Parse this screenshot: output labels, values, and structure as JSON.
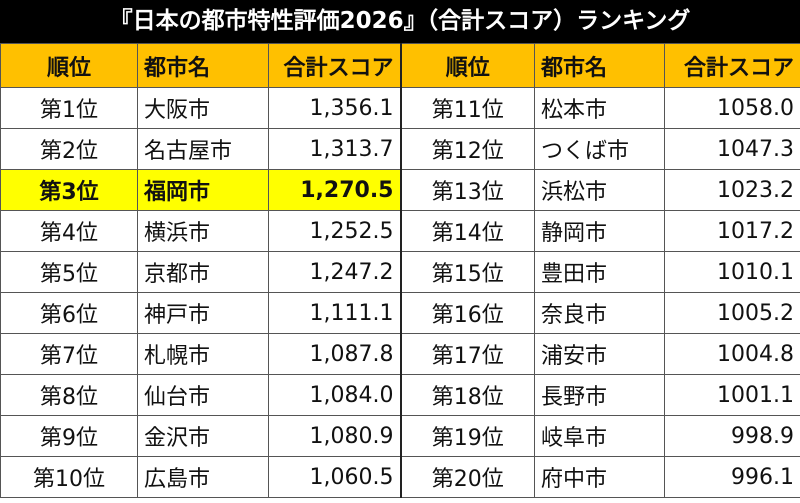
{
  "title": "『日本の都市特性評価2026』（合計スコア）ランキング",
  "table": {
    "header": [
      "順位",
      "都市名",
      "合計スコア",
      "順位",
      "都市名",
      "合計スコア"
    ],
    "rows": [
      [
        "第1位",
        "大阪市",
        "1,356.1",
        "第11位",
        "松本市",
        "1058.0"
      ],
      [
        "第2位",
        "名古屋市",
        "1,313.7",
        "第12位",
        "つくば市",
        "1047.3"
      ],
      [
        "第3位",
        "福岡市",
        "1,270.5",
        "第13位",
        "浜松市",
        "1023.2"
      ],
      [
        "第4位",
        "横浜市",
        "1,252.5",
        "第14位",
        "静岡市",
        "1017.2"
      ],
      [
        "第5位",
        "京都市",
        "1,247.2",
        "第15位",
        "豊田市",
        "1010.1"
      ],
      [
        "第6位",
        "神戸市",
        "1,111.1",
        "第16位",
        "奈良市",
        "1005.2"
      ],
      [
        "第7位",
        "札幌市",
        "1,087.8",
        "第17位",
        "浦安市",
        "1004.8"
      ],
      [
        "第8位",
        "仙台市",
        "1,084.0",
        "第18位",
        "長野市",
        "1001.1"
      ],
      [
        "第9位",
        "金沢市",
        "1,080.9",
        "第19位",
        "岐阜市",
        "998.9"
      ],
      [
        "第10位",
        "広島市",
        "1,060.5",
        "第20位",
        "府中市",
        "996.1"
      ]
    ],
    "highlight_row": 2,
    "highlight_color": "#ffff00",
    "header_color": "#ffc000"
  }
}
